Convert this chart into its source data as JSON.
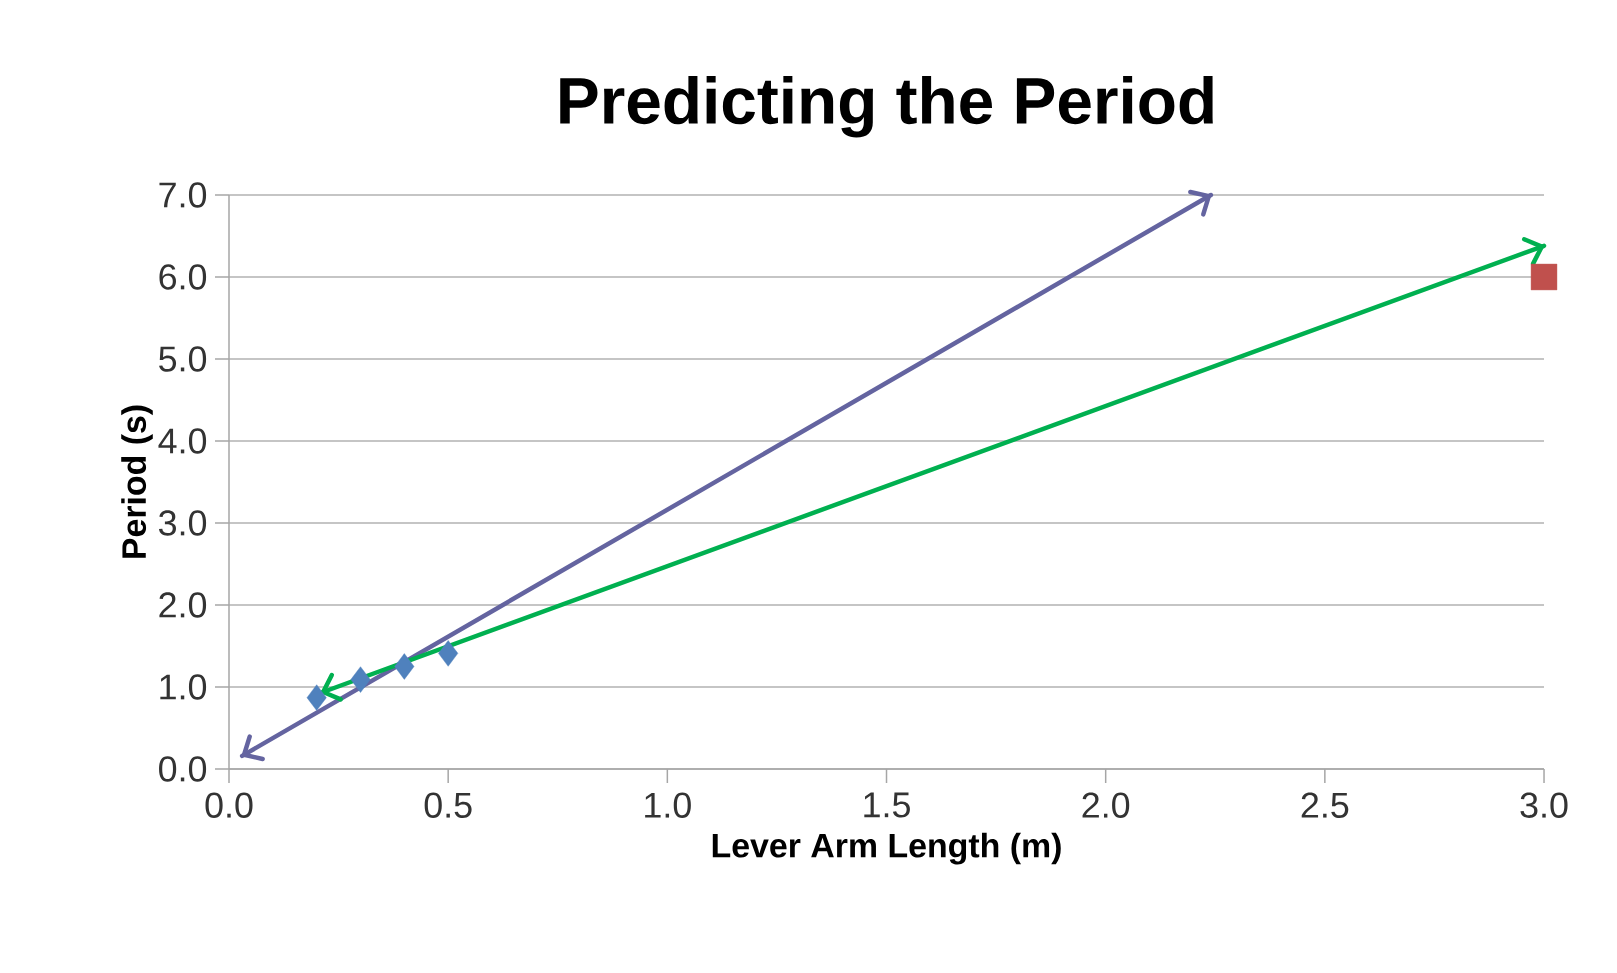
{
  "chart_data": {
    "type": "scatter",
    "title": "Predicting the Period",
    "xlabel": "Lever Arm Length (m)",
    "ylabel": "Period (s)",
    "xlim": [
      0,
      3
    ],
    "ylim": [
      0,
      7
    ],
    "xticks": [
      {
        "value": 0,
        "label": "0.0"
      },
      0.5,
      {
        "value": 1,
        "label": "1.0"
      },
      1.5,
      {
        "value": 2,
        "label": "2.0"
      },
      2.5,
      {
        "value": 3,
        "label": "3.0"
      }
    ],
    "yticks": [
      {
        "value": 0,
        "label": "0.0"
      },
      {
        "value": 1,
        "label": "1.0"
      },
      {
        "value": 2,
        "label": "2.0"
      },
      {
        "value": 3,
        "label": "3.0"
      },
      {
        "value": 4,
        "label": "4.0"
      },
      {
        "value": 5,
        "label": "5.0"
      },
      {
        "value": 6,
        "label": "6.0"
      },
      {
        "value": 7,
        "label": "7.0"
      }
    ],
    "grid": "y",
    "series": [
      {
        "marker": "diamond",
        "color": "#4f81bd",
        "x": [
          0.2,
          0.3,
          0.4,
          0.5
        ],
        "values": [
          0.87,
          1.09,
          1.25,
          1.41
        ]
      },
      {
        "marker": "square",
        "color": "#c0504d",
        "x": [
          3.0
        ],
        "values": [
          6.0
        ]
      },
      {
        "type": "line",
        "marker": "none",
        "line_style": "solid",
        "color": "#6464a0",
        "x": [
          0.03,
          2.24
        ],
        "values": [
          0.16,
          7.0
        ]
      },
      {
        "type": "line",
        "marker": "none",
        "line_style": "solid",
        "color": "#00b050",
        "x": [
          0.21,
          3.0
        ],
        "values": [
          0.93,
          6.38
        ]
      }
    ]
  }
}
